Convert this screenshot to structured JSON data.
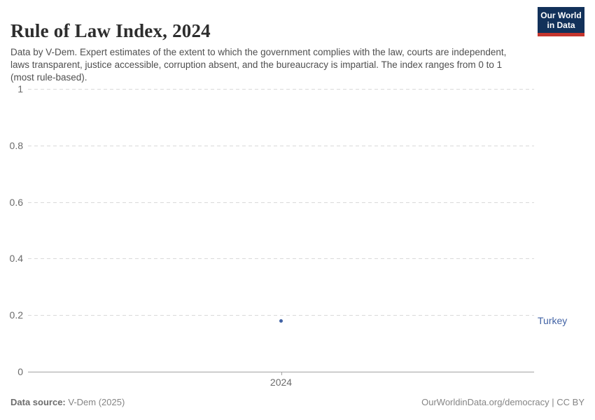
{
  "header": {
    "title": "Rule of Law Index, 2024",
    "subtitle": "Data by V-Dem. Expert estimates of the extent to which the government complies with the law, courts are independent, laws transparent, justice accessible, corruption absent, and the bureaucracy is impartial. The index ranges from 0 to 1 (most rule-based).",
    "logo": {
      "line1": "Our World",
      "line2": "in Data",
      "bg_color": "#12315a",
      "accent_color": "#c5352d"
    }
  },
  "chart_data": {
    "type": "scatter",
    "title": "Rule of Law Index, 2024",
    "x": [
      2024
    ],
    "series": [
      {
        "name": "Turkey",
        "values": [
          0.18
        ],
        "color": "#4263a5"
      }
    ],
    "xlabel": "",
    "ylabel": "",
    "ylim": [
      0,
      1
    ],
    "yticks": [
      0,
      0.2,
      0.4,
      0.6,
      0.8,
      1
    ],
    "ytick_labels": [
      "0",
      "0.2",
      "0.4",
      "0.6",
      "0.8",
      "1"
    ],
    "xtick_labels": [
      "2024"
    ],
    "grid": "horizontal-dashed",
    "legend": "entity-label-right",
    "colors": {
      "gridline": "#d9d9d9",
      "axis": "#a3a3a3",
      "tick_text": "#6b6b6b"
    }
  },
  "footer": {
    "source_label": "Data source:",
    "source_value": " V-Dem (2025)",
    "credit": "OurWorldinData.org/democracy | CC BY"
  }
}
